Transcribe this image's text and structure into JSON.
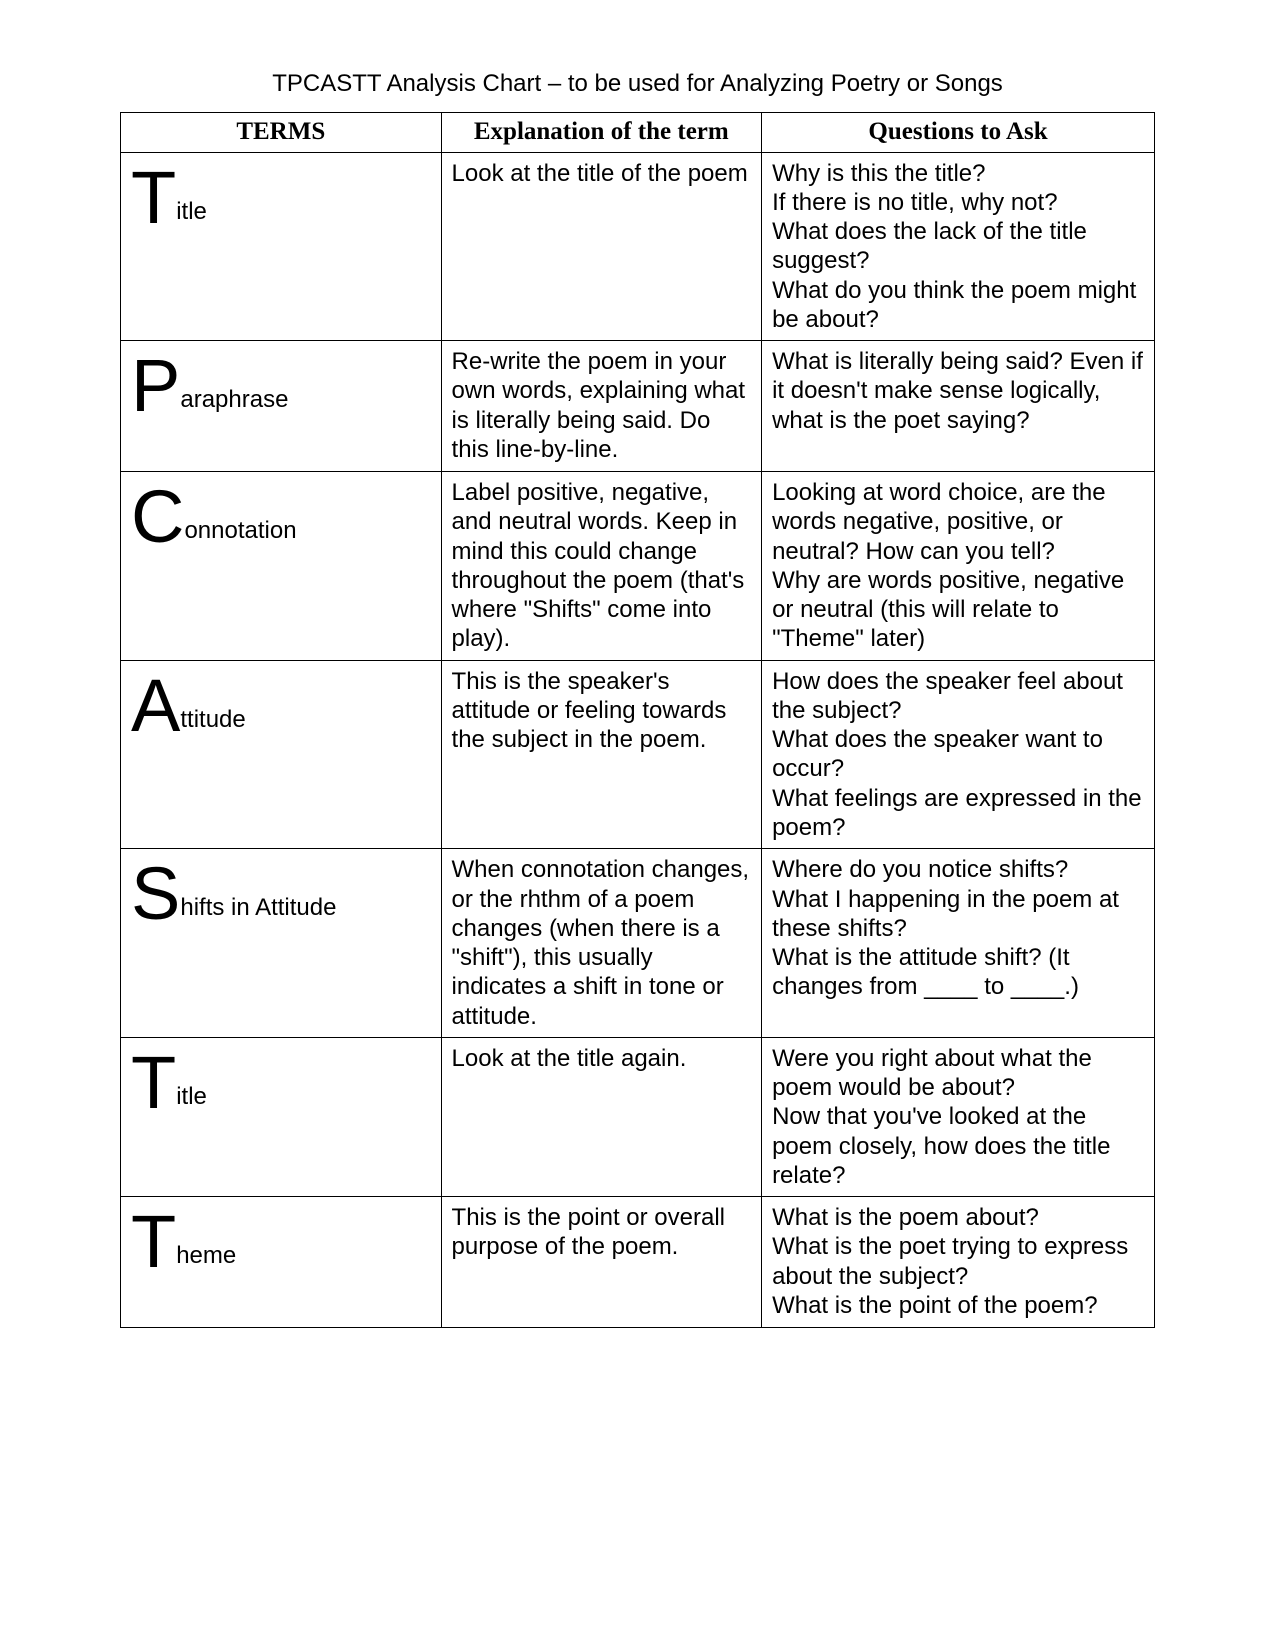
{
  "doc_title": "TPCASTT Analysis Chart – to be used for Analyzing Poetry or Songs",
  "headers": {
    "terms": "TERMS",
    "explanation": "Explanation of the term",
    "questions": "Questions to Ask"
  },
  "rows": [
    {
      "letter": "T",
      "rest": "itle",
      "explanation": "Look at the title of the poem",
      "questions": "Why is this the title?\nIf there is no title, why not?\nWhat does the lack of the title suggest?\nWhat do you think the poem might be about?"
    },
    {
      "letter": "P",
      "rest": "araphrase",
      "explanation": "Re-write the poem in your own words, explaining what is literally being said.  Do this line-by-line.",
      "questions": "What is literally being said?  Even if it doesn't make sense logically, what is the poet saying?"
    },
    {
      "letter": "C",
      "rest": "onnotation",
      "explanation": "Label positive, negative, and neutral words. Keep in mind this could change throughout the poem (that's where \"Shifts\" come into play).",
      "questions": "Looking at word choice, are  the words negative, positive, or neutral?  How can you tell?\nWhy are words positive, negative or neutral (this will relate to \"Theme\" later)"
    },
    {
      "letter": "A",
      "rest": "ttitude",
      "explanation": "This is the speaker's attitude or feeling towards the subject in the poem.",
      "questions": "How does the speaker feel about the subject?\nWhat does the speaker want to occur?\nWhat feelings are expressed in the poem?"
    },
    {
      "letter": "S",
      "rest": "hifts in Attitude",
      "explanation": "When connotation changes, or the rhthm of a poem changes (when there is a \"shift\"), this usually indicates a shift in tone or attitude.",
      "questions": "Where do you notice shifts?\nWhat I happening in the poem at these shifts?\nWhat is the attitude shift? (It changes from ____ to ____.)"
    },
    {
      "letter": "T",
      "rest": "itle",
      "explanation": "Look at the title again.",
      "questions": "Were you right about what the poem would be about?\nNow that you've looked at the poem closely, how does the title relate?"
    },
    {
      "letter": "T",
      "rest": "heme",
      "explanation": "This is the point or overall purpose of the poem.",
      "questions": "What is the poem about?\nWhat is the poet trying to express about the subject?\nWhat is the point of the poem?"
    }
  ]
}
